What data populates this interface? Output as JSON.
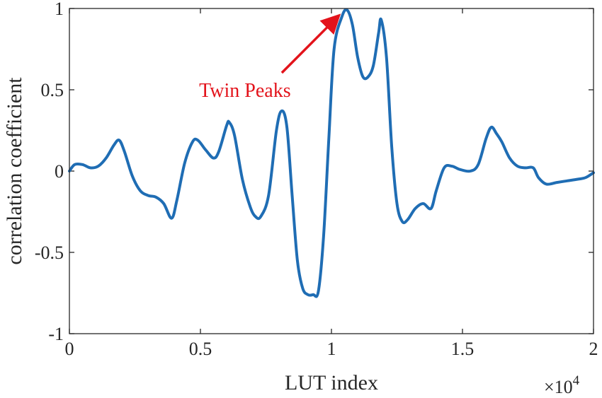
{
  "chart_data": {
    "type": "line",
    "xlabel": "LUT index",
    "ylabel": "correlation coefficient",
    "x_exponent_label": "×10",
    "x_exponent_power": "4",
    "xlim": [
      0,
      2
    ],
    "ylim": [
      -1,
      1
    ],
    "x_ticks": [
      0,
      0.5,
      1,
      1.5,
      2
    ],
    "x_tick_labels": [
      "0",
      "0.5",
      "1",
      "1.5",
      "2"
    ],
    "y_ticks": [
      -1,
      -0.5,
      0,
      0.5,
      1
    ],
    "y_tick_labels": [
      "-1",
      "-0.5",
      "0",
      "0.5",
      "1"
    ],
    "grid": false,
    "line_color": "#1f6db4",
    "annotation": {
      "text": "Twin Peaks",
      "color": "#e3131b",
      "points_to": [
        1.06,
        0.99
      ],
      "text_at": [
        0.67,
        0.5
      ]
    },
    "series": [
      {
        "points": [
          [
            0.0,
            0.0
          ],
          [
            0.02,
            0.04
          ],
          [
            0.05,
            0.04
          ],
          [
            0.08,
            0.02
          ],
          [
            0.11,
            0.03
          ],
          [
            0.14,
            0.08
          ],
          [
            0.17,
            0.16
          ],
          [
            0.19,
            0.19
          ],
          [
            0.21,
            0.12
          ],
          [
            0.24,
            -0.03
          ],
          [
            0.27,
            -0.12
          ],
          [
            0.3,
            -0.15
          ],
          [
            0.33,
            -0.16
          ],
          [
            0.36,
            -0.2
          ],
          [
            0.39,
            -0.29
          ],
          [
            0.41,
            -0.18
          ],
          [
            0.44,
            0.05
          ],
          [
            0.47,
            0.18
          ],
          [
            0.49,
            0.19
          ],
          [
            0.52,
            0.13
          ],
          [
            0.55,
            0.08
          ],
          [
            0.57,
            0.12
          ],
          [
            0.6,
            0.28
          ],
          [
            0.61,
            0.3
          ],
          [
            0.63,
            0.22
          ],
          [
            0.66,
            -0.05
          ],
          [
            0.69,
            -0.22
          ],
          [
            0.71,
            -0.28
          ],
          [
            0.73,
            -0.28
          ],
          [
            0.76,
            -0.15
          ],
          [
            0.79,
            0.25
          ],
          [
            0.81,
            0.37
          ],
          [
            0.83,
            0.27
          ],
          [
            0.85,
            -0.15
          ],
          [
            0.87,
            -0.55
          ],
          [
            0.89,
            -0.72
          ],
          [
            0.91,
            -0.76
          ],
          [
            0.93,
            -0.76
          ],
          [
            0.95,
            -0.74
          ],
          [
            0.97,
            -0.4
          ],
          [
            0.99,
            0.2
          ],
          [
            1.01,
            0.75
          ],
          [
            1.04,
            0.95
          ],
          [
            1.06,
            0.99
          ],
          [
            1.08,
            0.9
          ],
          [
            1.1,
            0.7
          ],
          [
            1.12,
            0.58
          ],
          [
            1.14,
            0.58
          ],
          [
            1.16,
            0.65
          ],
          [
            1.18,
            0.85
          ],
          [
            1.19,
            0.93
          ],
          [
            1.21,
            0.7
          ],
          [
            1.23,
            0.15
          ],
          [
            1.25,
            -0.2
          ],
          [
            1.27,
            -0.31
          ],
          [
            1.29,
            -0.3
          ],
          [
            1.32,
            -0.23
          ],
          [
            1.35,
            -0.2
          ],
          [
            1.38,
            -0.23
          ],
          [
            1.4,
            -0.12
          ],
          [
            1.43,
            0.02
          ],
          [
            1.46,
            0.03
          ],
          [
            1.49,
            0.01
          ],
          [
            1.53,
            0.0
          ],
          [
            1.56,
            0.04
          ],
          [
            1.59,
            0.2
          ],
          [
            1.61,
            0.27
          ],
          [
            1.63,
            0.23
          ],
          [
            1.65,
            0.18
          ],
          [
            1.68,
            0.08
          ],
          [
            1.71,
            0.03
          ],
          [
            1.74,
            0.02
          ],
          [
            1.77,
            0.02
          ],
          [
            1.79,
            -0.04
          ],
          [
            1.82,
            -0.08
          ],
          [
            1.86,
            -0.07
          ],
          [
            1.9,
            -0.06
          ],
          [
            1.94,
            -0.05
          ],
          [
            1.97,
            -0.04
          ],
          [
            2.0,
            -0.01
          ]
        ]
      }
    ]
  }
}
